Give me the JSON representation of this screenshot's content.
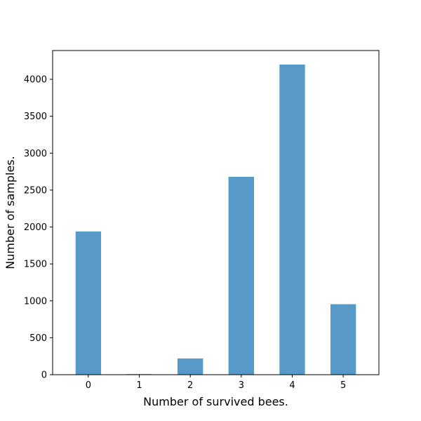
{
  "chart_data": {
    "type": "bar",
    "title": "",
    "xlabel": "Number of survived bees.",
    "ylabel": "Number of samples.",
    "categories": [
      "0",
      "1",
      "2",
      "3",
      "4",
      "5"
    ],
    "values": [
      1940,
      8,
      220,
      2680,
      4200,
      955
    ],
    "ylim": [
      0,
      4390
    ],
    "yticks": [
      0,
      500,
      1000,
      1500,
      2000,
      2500,
      3000,
      3500,
      4000
    ],
    "bar_color": "#1f77b4",
    "grid": false,
    "legend": "none"
  }
}
